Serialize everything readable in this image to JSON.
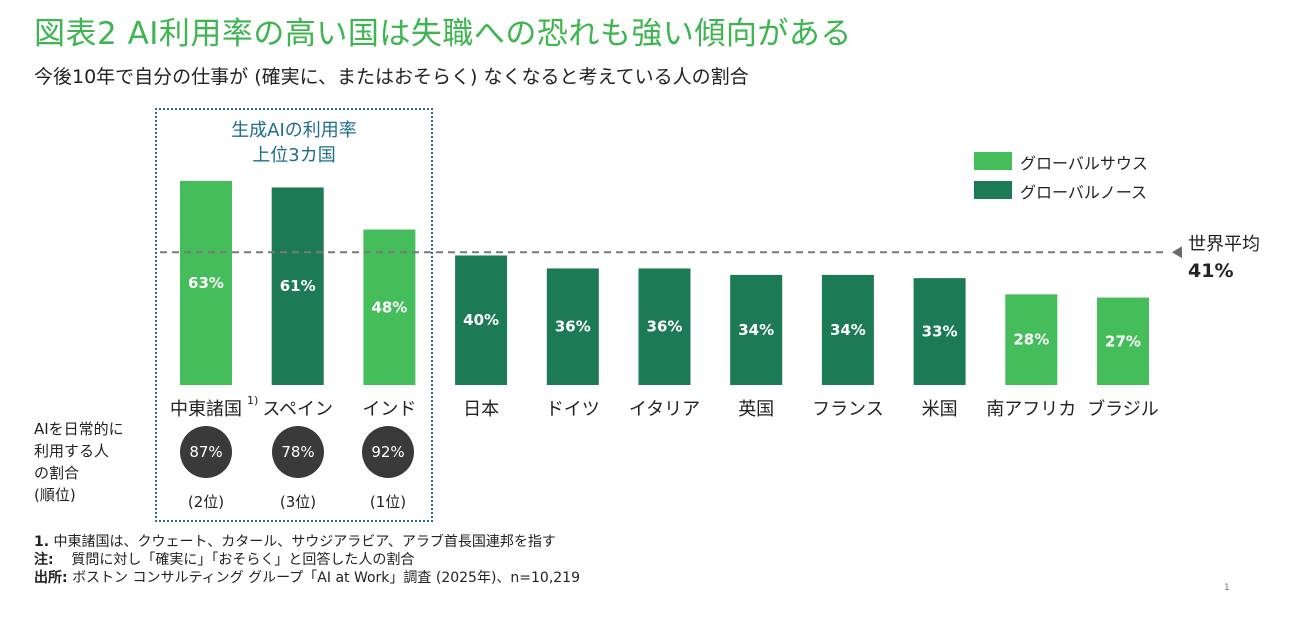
{
  "title": "図表2  AI利用率の高い国は失職への恐れも強い傾向がある",
  "subtitle": "今後10年で自分の仕事が (確実に、またはおそらく) なくなると考えている人の割合",
  "top3_box": {
    "line1": "生成AIの利用率",
    "line2": "上位3カ国"
  },
  "legend": [
    {
      "label": "グローバルサウス",
      "color": "#45bd5a"
    },
    {
      "label": "グローバルノース",
      "color": "#1c7a55"
    }
  ],
  "world_average": {
    "label": "世界平均",
    "value_text": "41%",
    "value": 41
  },
  "usage_label": [
    "AIを日常的に",
    "利用する人",
    "の割合",
    "(順位)"
  ],
  "usage": [
    {
      "value_text": "87%",
      "rank_text": "(2位)"
    },
    {
      "value_text": "78%",
      "rank_text": "(3位)"
    },
    {
      "value_text": "92%",
      "rank_text": "(1位)"
    }
  ],
  "chart_data": {
    "type": "bar",
    "categories": [
      "中東諸国",
      "スペイン",
      "インド",
      "日本",
      "ドイツ",
      "イタリア",
      "英国",
      "フランス",
      "米国",
      "南アフリカ",
      "ブラジル"
    ],
    "category_superscripts": [
      "1)",
      "",
      "",
      "",
      "",
      "",
      "",
      "",
      "",
      "",
      ""
    ],
    "values": [
      63,
      61,
      48,
      40,
      36,
      36,
      34,
      34,
      33,
      28,
      27
    ],
    "value_labels": [
      "63%",
      "61%",
      "48%",
      "40%",
      "36%",
      "36%",
      "34%",
      "34%",
      "33%",
      "28%",
      "27%"
    ],
    "groups": [
      "グローバルサウス",
      "グローバルノース",
      "グローバルサウス",
      "グローバルノース",
      "グローバルノース",
      "グローバルノース",
      "グローバルノース",
      "グローバルノース",
      "グローバルノース",
      "グローバルサウス",
      "グローバルサウス"
    ],
    "unit": "%",
    "reference_line": 41,
    "ylim": [
      0,
      63
    ],
    "grid": false,
    "legend_position": "top-right"
  },
  "footnotes": [
    {
      "label": "1.",
      "text": "中東諸国は、クウェート、カタール、サウジアラビア、アラブ首長国連邦を指す"
    },
    {
      "label": "注:",
      "text": "質問に対し「確実に」「おそらく」と回答した人の割合"
    },
    {
      "label": "出所:",
      "text": "ボストン コンサルティング グループ「AI at Work」調査 (2025年)、n=10,219"
    }
  ],
  "page_number": "1"
}
